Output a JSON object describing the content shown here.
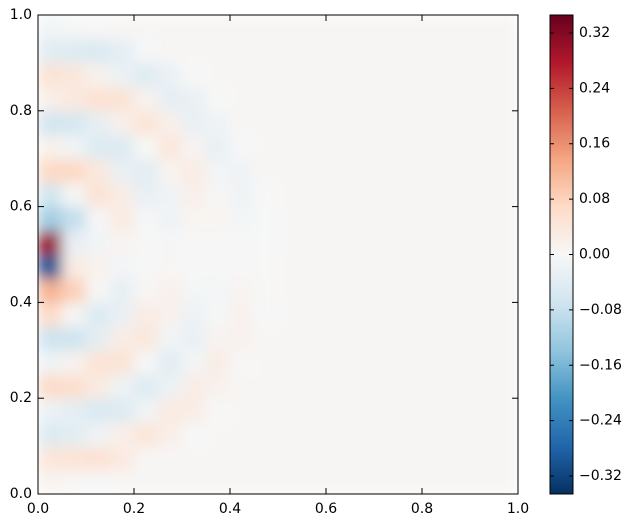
{
  "chart_data": {
    "type": "heatmap",
    "x": [
      0.025,
      0.075,
      0.125,
      0.175,
      0.225,
      0.275,
      0.325,
      0.375,
      0.425,
      0.475,
      0.525,
      0.575,
      0.625,
      0.675,
      0.725,
      0.775,
      0.825,
      0.875,
      0.925,
      0.975
    ],
    "y": [
      0.025,
      0.075,
      0.125,
      0.175,
      0.225,
      0.275,
      0.325,
      0.375,
      0.425,
      0.475,
      0.525,
      0.575,
      0.625,
      0.675,
      0.725,
      0.775,
      0.825,
      0.875,
      0.925,
      0.975
    ],
    "values": [
      [
        0.011,
        0.005,
        -0.002,
        0.005,
        0.005,
        0.005,
        0.005,
        0.005,
        0.005,
        0.005,
        0.005,
        0.005,
        0.005,
        0.005,
        0.005,
        0.005,
        0.005,
        0.005,
        0.005,
        0.005
      ],
      [
        0.042,
        0.048,
        0.052,
        0.034,
        0.004,
        0.005,
        0.005,
        0.005,
        0.005,
        0.005,
        0.005,
        0.005,
        0.005,
        0.005,
        0.005,
        0.005,
        0.005,
        0.005,
        0.005,
        0.005
      ],
      [
        -0.05,
        -0.039,
        -0.015,
        0.021,
        0.045,
        0.022,
        -0.001,
        0.005,
        0.005,
        0.005,
        0.005,
        0.005,
        0.005,
        0.005,
        0.005,
        0.005,
        0.005,
        0.005,
        0.005,
        0.005
      ],
      [
        -0.02,
        -0.034,
        -0.052,
        -0.05,
        -0.013,
        0.032,
        0.026,
        -0.001,
        0.005,
        0.005,
        0.005,
        0.005,
        0.005,
        0.005,
        0.005,
        0.005,
        0.005,
        0.005,
        0.005,
        0.005
      ],
      [
        0.068,
        0.06,
        0.032,
        -0.017,
        -0.047,
        -0.02,
        0.027,
        0.016,
        0.005,
        0.005,
        0.005,
        0.005,
        0.005,
        0.005,
        0.005,
        0.005,
        0.005,
        0.005,
        0.005,
        0.005
      ],
      [
        -0.016,
        0.012,
        0.048,
        0.05,
        -0.001,
        -0.039,
        -0.009,
        0.027,
        0.002,
        0.005,
        0.005,
        0.005,
        0.005,
        0.005,
        0.005,
        0.005,
        0.005,
        0.005,
        0.005,
        0.005
      ],
      [
        -0.071,
        -0.072,
        -0.036,
        0.026,
        0.039,
        -0.011,
        -0.027,
        0.01,
        0.014,
        0.005,
        0.005,
        0.005,
        0.005,
        0.005,
        0.005,
        0.005,
        0.005,
        0.005,
        0.005,
        0.005
      ],
      [
        0.067,
        0.005,
        -0.051,
        -0.026,
        0.027,
        0.014,
        -0.02,
        -0.005,
        0.015,
        -0.001,
        0.005,
        0.005,
        0.005,
        0.005,
        0.005,
        0.005,
        0.005,
        0.005,
        0.005,
        0.005
      ],
      [
        0.12,
        0.085,
        0.003,
        -0.031,
        0.004,
        0.017,
        -0.008,
        -0.008,
        0.009,
        0.001,
        0.005,
        0.005,
        0.005,
        0.005,
        0.005,
        0.005,
        0.005,
        0.005,
        0.005,
        0.005
      ],
      [
        -0.3,
        0.03,
        0.013,
        -0.01,
        -0.002,
        0.006,
        -0.002,
        -0.003,
        0.002,
        0.001,
        0.005,
        0.005,
        0.005,
        0.005,
        0.005,
        0.005,
        0.005,
        0.005,
        0.005,
        0.005
      ],
      [
        0.3,
        -0.03,
        -0.013,
        0.01,
        0.002,
        -0.006,
        0.002,
        0.003,
        -0.002,
        -0.001,
        0.005,
        0.005,
        0.005,
        0.005,
        0.005,
        0.005,
        0.005,
        0.005,
        0.005,
        0.005
      ],
      [
        -0.12,
        -0.085,
        -0.003,
        0.031,
        -0.004,
        -0.017,
        0.008,
        0.008,
        -0.009,
        -0.001,
        0.005,
        0.005,
        0.005,
        0.005,
        0.005,
        0.005,
        0.005,
        0.005,
        0.005,
        0.005
      ],
      [
        -0.067,
        -0.005,
        0.051,
        0.026,
        -0.027,
        -0.014,
        0.02,
        0.005,
        -0.015,
        0.001,
        0.005,
        0.005,
        0.005,
        0.005,
        0.005,
        0.005,
        0.005,
        0.005,
        0.005,
        0.005
      ],
      [
        0.071,
        0.072,
        0.036,
        -0.026,
        -0.039,
        0.011,
        0.027,
        -0.01,
        -0.014,
        0.005,
        0.005,
        0.005,
        0.005,
        0.005,
        0.005,
        0.005,
        0.005,
        0.005,
        0.005,
        0.005
      ],
      [
        0.016,
        -0.012,
        -0.048,
        -0.05,
        0.001,
        0.039,
        0.009,
        -0.027,
        -0.002,
        0.005,
        0.005,
        0.005,
        0.005,
        0.005,
        0.005,
        0.005,
        0.005,
        0.005,
        0.005,
        0.005
      ],
      [
        -0.068,
        -0.06,
        -0.032,
        0.017,
        0.047,
        0.02,
        -0.027,
        -0.016,
        0.005,
        0.005,
        0.005,
        0.005,
        0.005,
        0.005,
        0.005,
        0.005,
        0.005,
        0.005,
        0.005,
        0.005
      ],
      [
        0.02,
        0.034,
        0.052,
        0.05,
        0.013,
        -0.032,
        -0.026,
        0.001,
        0.005,
        0.005,
        0.005,
        0.005,
        0.005,
        0.005,
        0.005,
        0.005,
        0.005,
        0.005,
        0.005,
        0.005
      ],
      [
        0.05,
        0.039,
        0.015,
        -0.021,
        -0.045,
        -0.022,
        0.001,
        0.005,
        0.005,
        0.005,
        0.005,
        0.005,
        0.005,
        0.005,
        0.005,
        0.005,
        0.005,
        0.005,
        0.005,
        0.005
      ],
      [
        -0.042,
        -0.048,
        -0.052,
        -0.034,
        -0.004,
        0.005,
        0.005,
        0.005,
        0.005,
        0.005,
        0.005,
        0.005,
        0.005,
        0.005,
        0.005,
        0.005,
        0.005,
        0.005,
        0.005,
        0.005
      ],
      [
        -0.011,
        -0.005,
        0.002,
        0.005,
        0.005,
        0.005,
        0.005,
        0.005,
        0.005,
        0.005,
        0.005,
        0.005,
        0.005,
        0.005,
        0.005,
        0.005,
        0.005,
        0.005,
        0.005,
        0.005
      ]
    ],
    "xlim": [
      0,
      1
    ],
    "ylim": [
      0,
      1
    ],
    "xticks": [
      {
        "value": 0,
        "label": "0.0"
      },
      0.2,
      0.4,
      0.6,
      0.8,
      {
        "value": 1,
        "label": "1.0"
      }
    ],
    "yticks": [
      {
        "value": 0,
        "label": "0.0"
      },
      0.2,
      0.4,
      0.6,
      0.8,
      {
        "value": 1,
        "label": "1.0"
      }
    ],
    "colors": [
      "#053061",
      "#2166ac",
      "#4393c3",
      "#92c5de",
      "#d1e5f0",
      "#f7f7f7",
      "#fddbc7",
      "#f4a582",
      "#d6604d",
      "#b2182b",
      "#67001f"
    ],
    "clim": [
      -0.346,
      0.346
    ],
    "cticks": [
      {
        "value": -0.32,
        "label": "−0.32"
      },
      {
        "value": -0.24,
        "label": "−0.24"
      },
      {
        "value": -0.16,
        "label": "−0.16"
      },
      {
        "value": -0.08,
        "label": "−0.08"
      },
      {
        "value": 0,
        "label": "0.00"
      },
      0.08,
      0.16,
      0.24,
      0.32
    ]
  }
}
